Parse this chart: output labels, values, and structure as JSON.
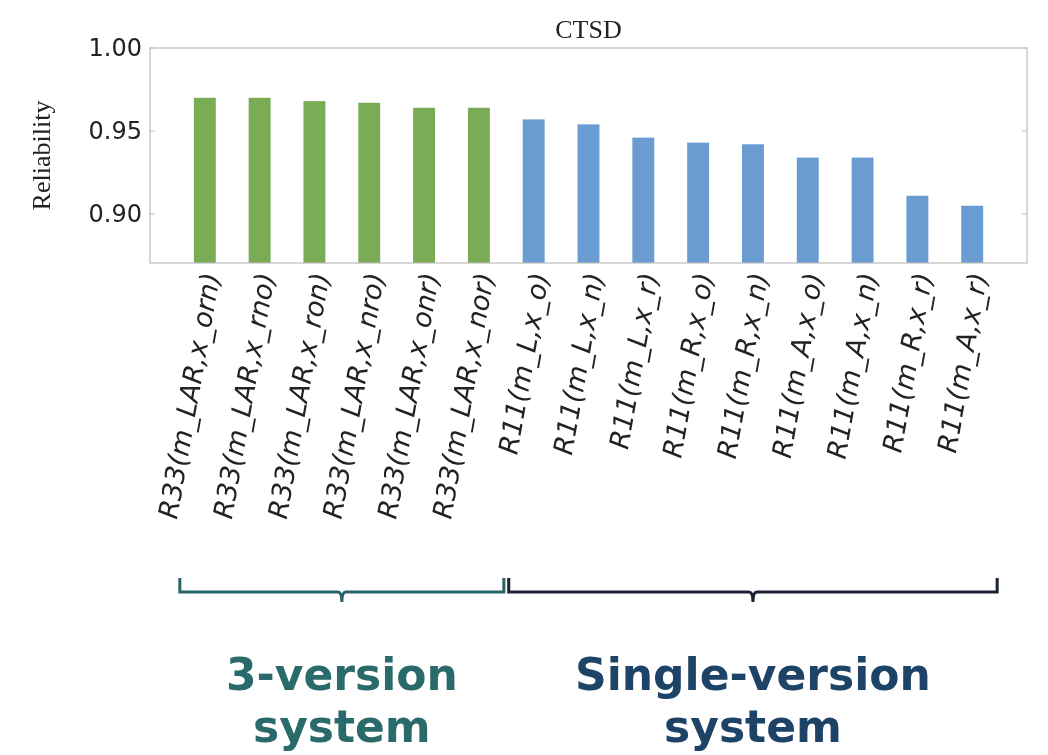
{
  "chart_data": {
    "type": "bar",
    "title": "CTSD",
    "ylabel": "Reliability",
    "categories": [
      "R33(m_LAR,x_orn)",
      "R33(m_LAR,x_rno)",
      "R33(m_LAR,x_ron)",
      "R33(m_LAR,x_nro)",
      "R33(m_LAR,x_onr)",
      "R33(m_LAR,x_nor)",
      "R11(m_L,x_o)",
      "R11(m_L,x_n)",
      "R11(m_L,x_r)",
      "R11(m_R,x_o)",
      "R11(m_R,x_n)",
      "R11(m_A,x_o)",
      "R11(m_A,x_n)",
      "R11(m_R,x_r)",
      "R11(m_A,x_r)"
    ],
    "values": [
      0.97,
      0.97,
      0.968,
      0.967,
      0.964,
      0.964,
      0.957,
      0.954,
      0.946,
      0.943,
      0.942,
      0.934,
      0.934,
      0.911,
      0.905
    ],
    "colors": [
      "#7aab55",
      "#7aab55",
      "#7aab55",
      "#7aab55",
      "#7aab55",
      "#7aab55",
      "#6a9bd1",
      "#6a9bd1",
      "#6a9bd1",
      "#6a9bd1",
      "#6a9bd1",
      "#6a9bd1",
      "#6a9bd1",
      "#6a9bd1",
      "#6a9bd1"
    ],
    "ylim": [
      0.8705,
      1.0
    ],
    "yticks": [
      {
        "value": 0.9,
        "label": "0.90"
      },
      {
        "value": 0.95,
        "label": "0.95"
      },
      {
        "value": 1.0,
        "label": "1.00"
      }
    ],
    "annotations": [
      "3-version system",
      "Single-version system"
    ],
    "grid": false
  }
}
